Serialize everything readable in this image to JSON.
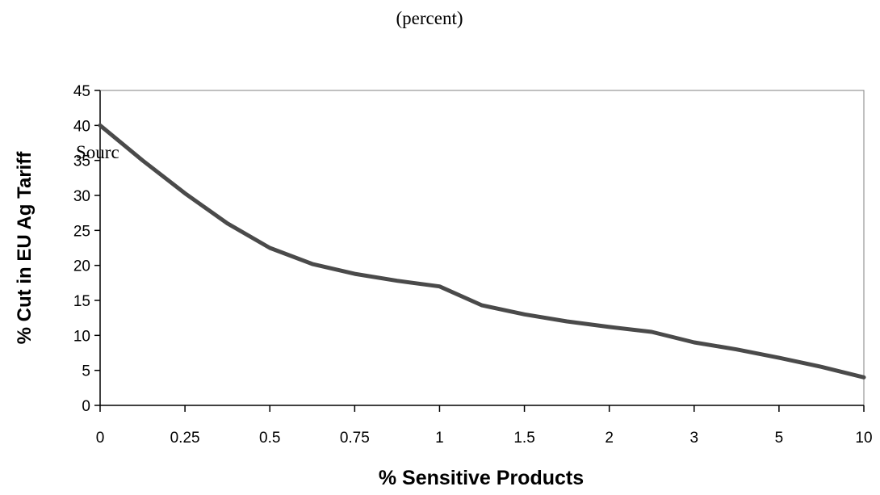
{
  "header": {
    "subtitle": "(percent)"
  },
  "overlay_text": "Sourc",
  "chart_data": {
    "type": "line",
    "title": "",
    "xlabel": "% Sensitive Products",
    "ylabel": "% Cut in EU Ag Tariff",
    "x_ticks": [
      "0",
      "0.25",
      "0.5",
      "0.75",
      "1",
      "1.5",
      "2",
      "3",
      "5",
      "10"
    ],
    "y_ticks": [
      "0",
      "5",
      "10",
      "15",
      "20",
      "25",
      "30",
      "35",
      "40",
      "45"
    ],
    "ylim": [
      0,
      45
    ],
    "grid": false,
    "legend": "none",
    "series": [
      {
        "color": "#4a4a4a",
        "x": [
          0,
          0.125,
          0.25,
          0.375,
          0.5,
          0.625,
          0.75,
          0.875,
          1,
          1.25,
          1.5,
          1.75,
          2,
          2.5,
          3,
          4,
          5,
          7.5,
          10
        ],
        "y": [
          40,
          35,
          30.3,
          26,
          22.5,
          20.2,
          18.8,
          17.8,
          17,
          14.3,
          13,
          12,
          11.2,
          10.5,
          9,
          8,
          6.8,
          5.5,
          4
        ]
      }
    ]
  }
}
